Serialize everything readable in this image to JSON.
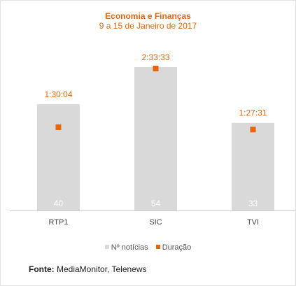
{
  "chart_data": {
    "type": "bar",
    "title": "Economia e Finanças",
    "subtitle": "9 a 15 de Janeiro de 2017",
    "categories": [
      "RTP1",
      "SIC",
      "TVI"
    ],
    "series": [
      {
        "name": "Nº notícias",
        "values": [
          40,
          54,
          33
        ],
        "color": "#d9d9d9"
      },
      {
        "name": "Duração",
        "values": [
          "1:30:04",
          "2:33:33",
          "1:27:31"
        ],
        "color": "#e8650a"
      }
    ],
    "ylim": [
      0,
      54
    ],
    "grid": false,
    "legend_position": "bottom"
  },
  "source": {
    "label": "Fonte:",
    "text": "MediaMonitor, Telenews"
  }
}
